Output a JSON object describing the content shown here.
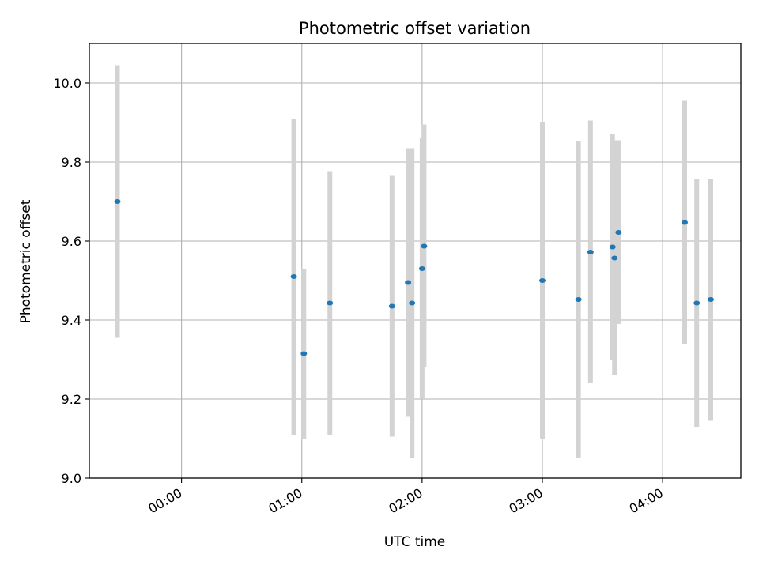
{
  "chart_data": {
    "type": "scatter",
    "title": "Photometric offset variation",
    "xlabel": "UTC time",
    "ylabel": "Photometric offset",
    "x_unit": "hours UTC",
    "xlim": [
      "-0:46",
      "4:39"
    ],
    "ylim": [
      9.0,
      10.1
    ],
    "grid": true,
    "x_ticks": [
      {
        "label": "00:00",
        "value": "0:00"
      },
      {
        "label": "01:00",
        "value": "1:00"
      },
      {
        "label": "02:00",
        "value": "2:00"
      },
      {
        "label": "03:00",
        "value": "3:00"
      },
      {
        "label": "04:00",
        "value": "4:00"
      }
    ],
    "y_ticks": [
      {
        "label": "9.0",
        "value": 9.0
      },
      {
        "label": "9.2",
        "value": 9.2
      },
      {
        "label": "9.4",
        "value": 9.4
      },
      {
        "label": "9.6",
        "value": 9.6
      },
      {
        "label": "9.8",
        "value": 9.8
      },
      {
        "label": "10.0",
        "value": 10.0
      }
    ],
    "marker_color": "#1f77b4",
    "errorbar_color": "#d3d3d3",
    "points": [
      {
        "x": "-0:32",
        "y": 9.7,
        "ylow": 9.355,
        "yhigh": 10.045
      },
      {
        "x": "0:56",
        "y": 9.51,
        "ylow": 9.11,
        "yhigh": 9.91
      },
      {
        "x": "1:01",
        "y": 9.315,
        "ylow": 9.1,
        "yhigh": 9.53
      },
      {
        "x": "1:14",
        "y": 9.443,
        "ylow": 9.11,
        "yhigh": 9.775
      },
      {
        "x": "1:45",
        "y": 9.435,
        "ylow": 9.105,
        "yhigh": 9.765
      },
      {
        "x": "1:53",
        "y": 9.495,
        "ylow": 9.155,
        "yhigh": 9.835
      },
      {
        "x": "1:55",
        "y": 9.443,
        "ylow": 9.05,
        "yhigh": 9.835
      },
      {
        "x": "2:00",
        "y": 9.53,
        "ylow": 9.2,
        "yhigh": 9.86
      },
      {
        "x": "2:01",
        "y": 9.587,
        "ylow": 9.28,
        "yhigh": 9.895
      },
      {
        "x": "3:00",
        "y": 9.5,
        "ylow": 9.1,
        "yhigh": 9.9
      },
      {
        "x": "3:18",
        "y": 9.452,
        "ylow": 9.05,
        "yhigh": 9.853
      },
      {
        "x": "3:24",
        "y": 9.572,
        "ylow": 9.24,
        "yhigh": 9.905
      },
      {
        "x": "3:35",
        "y": 9.585,
        "ylow": 9.3,
        "yhigh": 9.87
      },
      {
        "x": "3:36",
        "y": 9.557,
        "ylow": 9.26,
        "yhigh": 9.855
      },
      {
        "x": "3:38",
        "y": 9.622,
        "ylow": 9.39,
        "yhigh": 9.855
      },
      {
        "x": "4:11",
        "y": 9.647,
        "ylow": 9.34,
        "yhigh": 9.955
      },
      {
        "x": "4:17",
        "y": 9.443,
        "ylow": 9.13,
        "yhigh": 9.757
      },
      {
        "x": "4:24",
        "y": 9.452,
        "ylow": 9.145,
        "yhigh": 9.757
      }
    ]
  }
}
